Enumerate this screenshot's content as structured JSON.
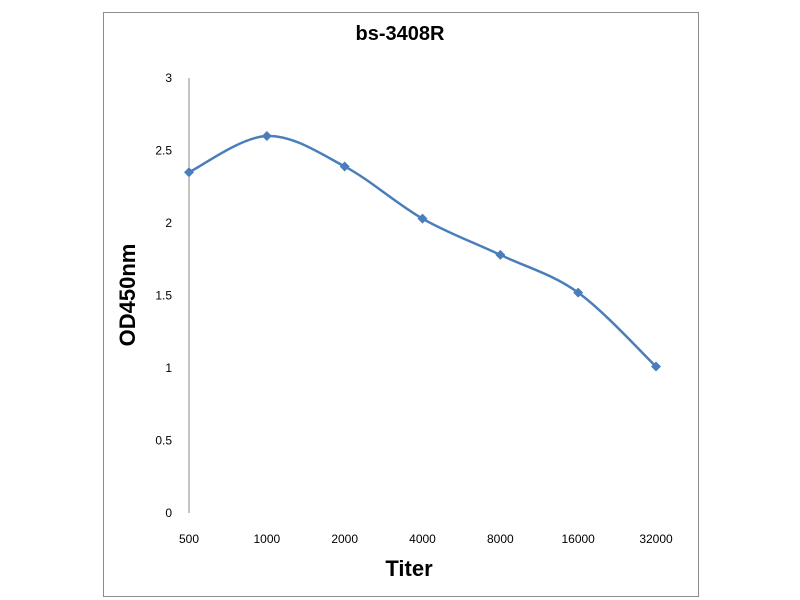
{
  "chart_data": {
    "type": "line",
    "title": "bs-3408R",
    "xlabel": "Titer",
    "ylabel": "OD450nm",
    "categories": [
      "500",
      "1000",
      "2000",
      "4000",
      "8000",
      "16000",
      "32000"
    ],
    "series": [
      {
        "name": "bs-3408R",
        "values": [
          2.35,
          2.6,
          2.39,
          2.03,
          1.78,
          1.52,
          1.01
        ],
        "color": "#4a7ebb"
      }
    ],
    "ylim": [
      0,
      3
    ],
    "yticks": [
      "0",
      "0.5",
      "1",
      "1.5",
      "2",
      "2.5",
      "3"
    ],
    "grid": false,
    "legend": "none",
    "smooth": true
  }
}
